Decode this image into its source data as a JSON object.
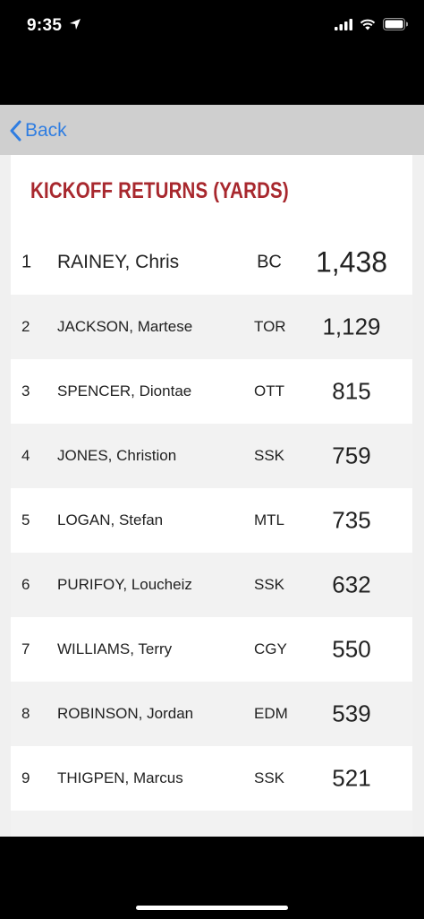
{
  "status_bar": {
    "time": "9:35",
    "icons": [
      "location-arrow-icon",
      "signal-icon",
      "wifi-icon",
      "battery-icon"
    ]
  },
  "nav": {
    "back_label": "Back",
    "accent_color": "#2f7de1"
  },
  "page": {
    "title": "KICKOFF RETURNS (YARDS)",
    "title_color": "#a8282e"
  },
  "leaders": [
    {
      "rank": "1",
      "name": "RAINEY, Chris",
      "team": "BC",
      "value": "1,438"
    },
    {
      "rank": "2",
      "name": "JACKSON, Martese",
      "team": "TOR",
      "value": "1,129"
    },
    {
      "rank": "3",
      "name": "SPENCER, Diontae",
      "team": "OTT",
      "value": "815"
    },
    {
      "rank": "4",
      "name": "JONES, Christion",
      "team": "SSK",
      "value": "759"
    },
    {
      "rank": "5",
      "name": "LOGAN, Stefan",
      "team": "MTL",
      "value": "735"
    },
    {
      "rank": "6",
      "name": "PURIFOY, Loucheiz",
      "team": "SSK",
      "value": "632"
    },
    {
      "rank": "7",
      "name": "WILLIAMS, Terry",
      "team": "CGY",
      "value": "550"
    },
    {
      "rank": "8",
      "name": "ROBINSON, Jordan",
      "team": "EDM",
      "value": "539"
    },
    {
      "rank": "9",
      "name": "THIGPEN, Marcus",
      "team": "SSK",
      "value": "521"
    }
  ]
}
